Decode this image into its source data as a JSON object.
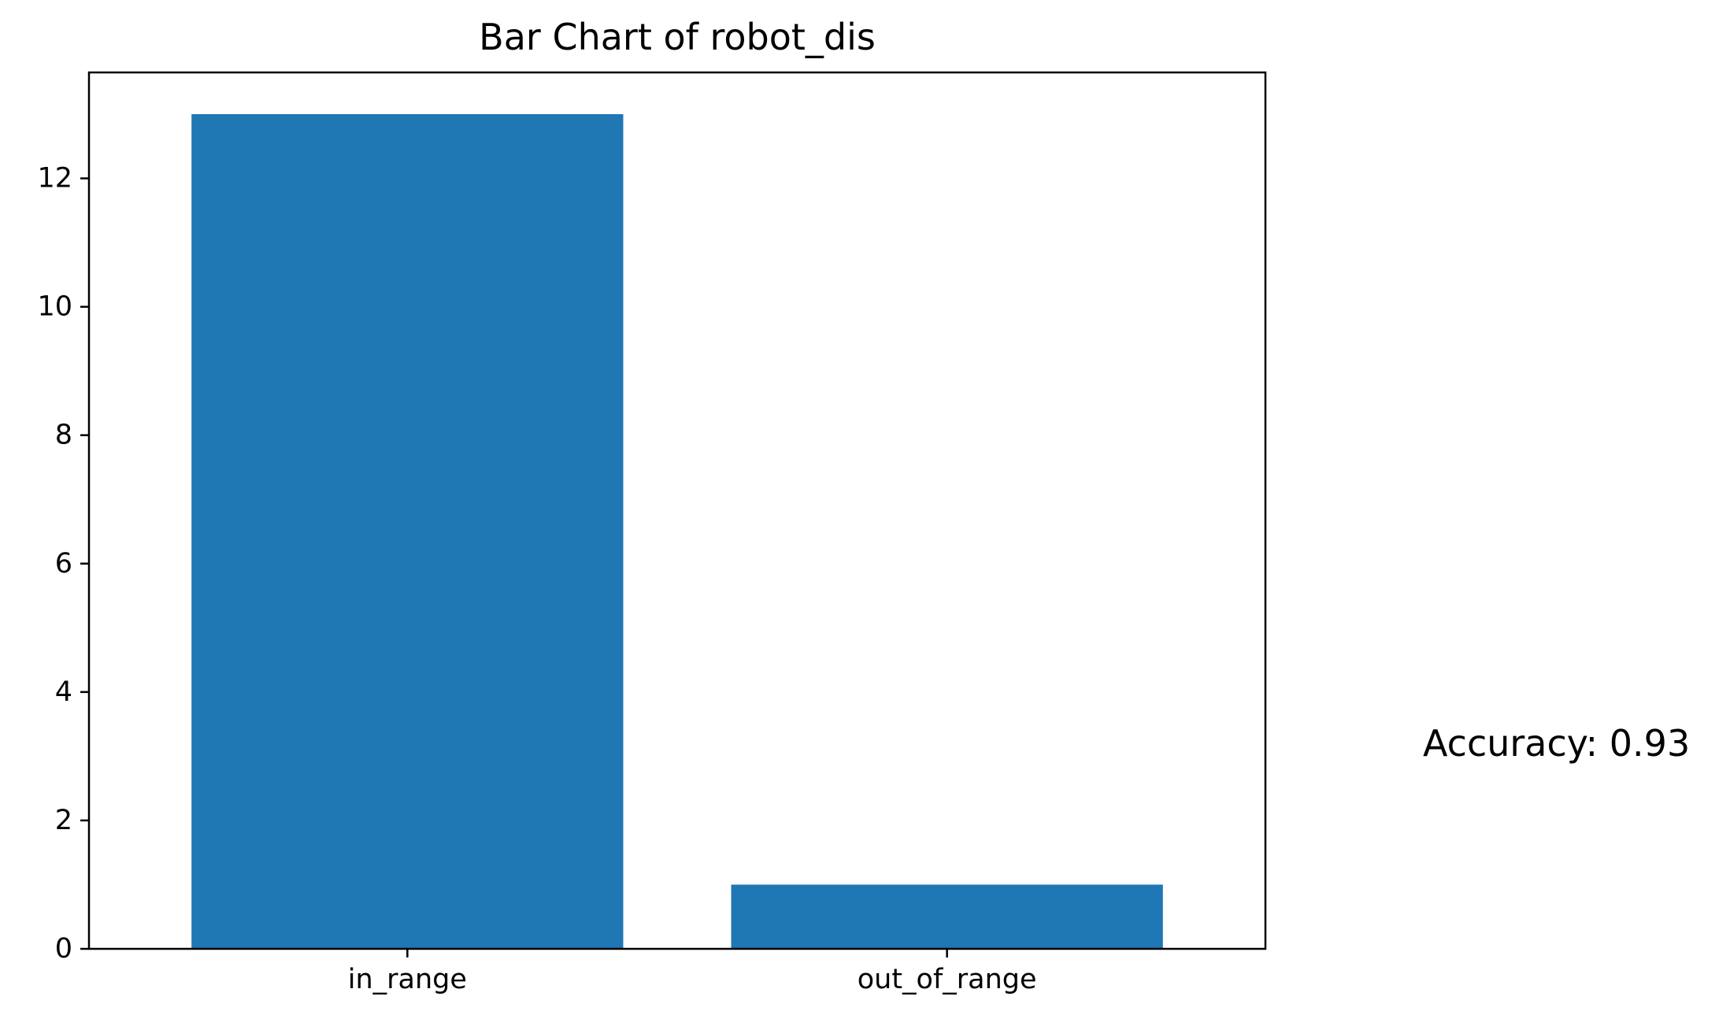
{
  "chart_data": {
    "type": "bar",
    "title": "Bar Chart of robot_dis",
    "xlabel": "",
    "ylabel": "",
    "categories": [
      "in_range",
      "out_of_range"
    ],
    "values": [
      13,
      1
    ],
    "ylim": [
      0,
      13.65
    ],
    "yticks": [
      0,
      2,
      4,
      6,
      8,
      10,
      12
    ],
    "ytick_labels": [
      "0",
      "2",
      "4",
      "6",
      "8",
      "10",
      "12"
    ],
    "bar_color": "#1f77b4",
    "grid": false,
    "legend": null,
    "annotation": "Accuracy: 0.93"
  }
}
